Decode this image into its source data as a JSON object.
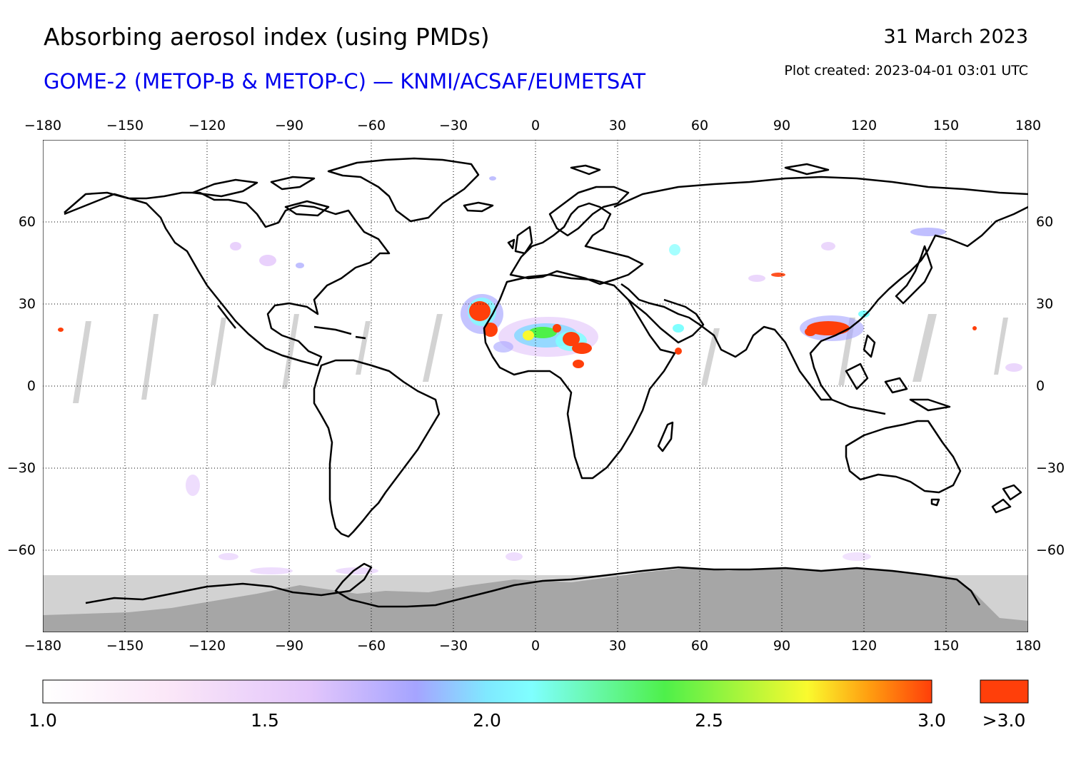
{
  "header": {
    "title": "Absorbing aerosol index (using PMDs)",
    "subtitle": "GOME-2 (METOP-B & METOP-C) — KNMI/ACSAF/EUMETSAT",
    "date": "31 March 2023",
    "plot_created": "Plot created: 2023-04-01 03:01 UTC"
  },
  "map": {
    "projection": "equirectangular",
    "lon_range": [
      -180,
      180
    ],
    "lat_range": [
      -90,
      90
    ],
    "lon_ticks": [
      "−180",
      "−150",
      "−120",
      "−90",
      "−60",
      "−30",
      "0",
      "30",
      "60",
      "90",
      "120",
      "150",
      "180"
    ],
    "lat_ticks": [
      "60",
      "30",
      "0",
      "−30",
      "−60"
    ],
    "grid": true,
    "no_data_color": "#d0d0d0",
    "polar_night_color": "#a6a6a6",
    "features": [
      "Saharan dust plume over West Africa and the Atlantic coast (>3.0)",
      "Smoke/aerosol over Southeast Asia (>3.0)",
      "Grey swaths: no data between orbits",
      "Antarctica: no data"
    ]
  },
  "colorbar": {
    "min": 1.0,
    "max": 3.0,
    "labels": [
      "1.0",
      "1.5",
      "2.0",
      "2.5",
      "3.0"
    ],
    "overflow_label": ">3.0",
    "overflow_color": "#ff3f0a",
    "stops": [
      "#ffffff",
      "#f4d2f7",
      "#a5a4ff",
      "#7fffff",
      "#4ef04a",
      "#fafa2e",
      "#ff7310",
      "#ff3f0a"
    ]
  }
}
